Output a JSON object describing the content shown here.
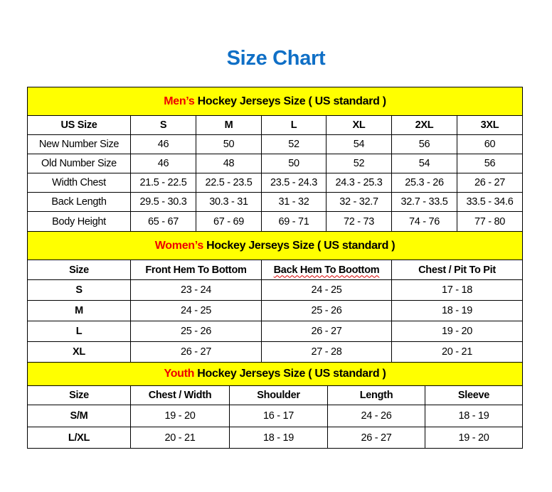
{
  "title": "Size Chart",
  "colors": {
    "title": "#0f6fc6",
    "band": "#ffff00",
    "accent": "#ee0000"
  },
  "sections": [
    {
      "id": "men",
      "heading_accent": "Men’s",
      "heading_rest": " Hockey Jerseys Size ( US standard )",
      "columns": [
        "US Size",
        "S",
        "M",
        "L",
        "XL",
        "2XL",
        "3XL"
      ],
      "rows": [
        [
          "New Number Size",
          "46",
          "50",
          "52",
          "54",
          "56",
          "60"
        ],
        [
          "Old Number Size",
          "46",
          "48",
          "50",
          "52",
          "54",
          "56"
        ],
        [
          "Width Chest",
          "21.5 - 22.5",
          "22.5 - 23.5",
          "23.5 - 24.3",
          "24.3 - 25.3",
          "25.3 - 26",
          "26 - 27"
        ],
        [
          "Back Length",
          "29.5 - 30.3",
          "30.3 - 31",
          "31 - 32",
          "32 - 32.7",
          "32.7 - 33.5",
          "33.5 - 34.6"
        ],
        [
          "Body Height",
          "65 - 67",
          "67 - 69",
          "69 - 71",
          "72 - 73",
          "74 - 76",
          "77 - 80"
        ]
      ]
    },
    {
      "id": "women",
      "heading_accent": "Women’s",
      "heading_rest": " Hockey Jerseys Size ( US standard )",
      "columns": [
        "Size",
        "Front Hem To Bottom",
        "Back Hem To Boottom",
        "Chest / Pit To Pit"
      ],
      "rows": [
        [
          "S",
          "23 - 24",
          "24 - 25",
          "17 - 18"
        ],
        [
          "M",
          "24 - 25",
          "25 - 26",
          "18 - 19"
        ],
        [
          "L",
          "25 - 26",
          "26 - 27",
          "19 - 20"
        ],
        [
          "XL",
          "26 - 27",
          "27 - 28",
          "20 - 21"
        ]
      ]
    },
    {
      "id": "youth",
      "heading_accent": "Youth",
      "heading_rest": " Hockey Jerseys Size ( US standard )",
      "columns": [
        "Size",
        "Chest / Width",
        "Shoulder",
        "Length",
        "Sleeve"
      ],
      "rows": [
        [
          "S/M",
          "19 - 20",
          "16 - 17",
          "24 - 26",
          "18 - 19"
        ],
        [
          "L/XL",
          "20 - 21",
          "18 - 19",
          "26 - 27",
          "19 - 20"
        ]
      ]
    }
  ]
}
